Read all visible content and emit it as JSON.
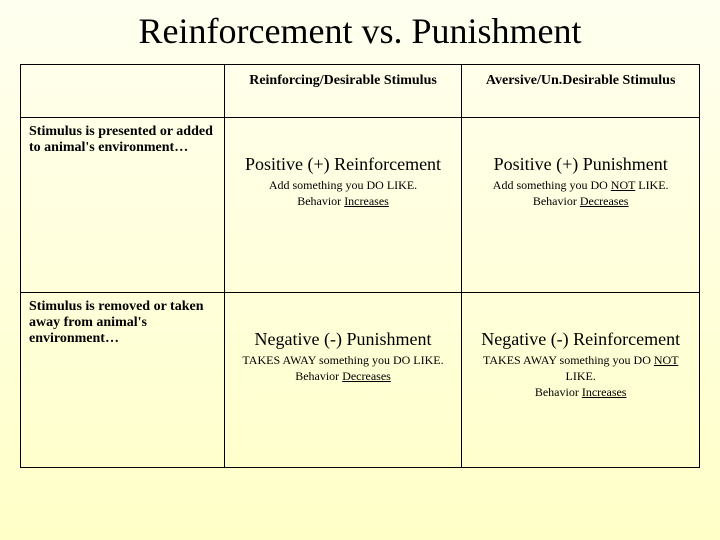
{
  "title": "Reinforcement vs. Punishment",
  "headers": {
    "col1": "Reinforcing/Desirable Stimulus",
    "col2": "Aversive/Un.Desirable Stimulus"
  },
  "rows": {
    "r1_label": "Stimulus is presented or added to animal's environment…",
    "r2_label": "Stimulus is removed or taken away from animal's environment…"
  },
  "cells": {
    "c11_main": "Positive (+) Reinforcement",
    "c11_sub_a": "Add something you DO LIKE.",
    "c11_sub_b1": "Behavior ",
    "c11_sub_b2": "Increases",
    "c12_main": "Positive (+) Punishment",
    "c12_sub_a1": "Add something you DO ",
    "c12_sub_a2": "NOT",
    "c12_sub_a3": " LIKE.",
    "c12_sub_b1": "Behavior ",
    "c12_sub_b2": "Decreases",
    "c21_main": "Negative (-) Punishment",
    "c21_sub_a": "TAKES AWAY something you DO LIKE.",
    "c21_sub_b1": "Behavior ",
    "c21_sub_b2": "Decreases",
    "c22_main": "Negative (-) Reinforcement",
    "c22_sub_a1": "TAKES AWAY something you DO ",
    "c22_sub_a2": "NOT",
    "c22_sub_a3": " LIKE.",
    "c22_sub_b1": "Behavior ",
    "c22_sub_b2": "Increases"
  },
  "style": {
    "background_top": "#fffff0",
    "background_bottom": "#ffffc8",
    "border_color": "#000000",
    "title_fontsize": 36,
    "header_fontsize": 14,
    "label_fontsize": 14,
    "main_fontsize": 18,
    "sub_fontsize": 12,
    "font_family": "Times New Roman"
  }
}
